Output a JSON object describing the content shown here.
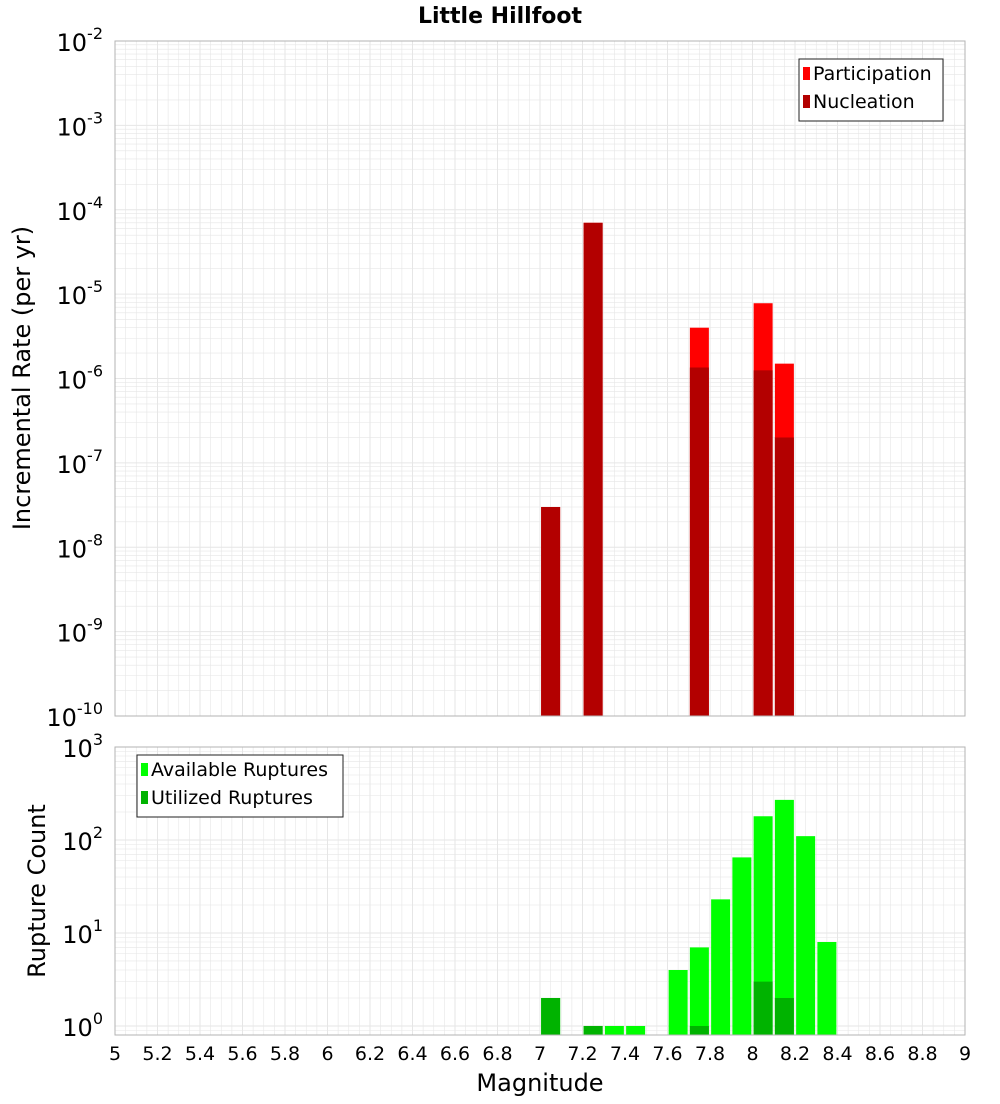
{
  "title": "Little Hillfoot",
  "xlabel": "Magnitude",
  "x_ticks": [
    "5",
    "5.2",
    "5.4",
    "5.6",
    "5.8",
    "6",
    "6.2",
    "6.4",
    "6.6",
    "6.8",
    "7",
    "7.2",
    "7.4",
    "7.6",
    "7.8",
    "8",
    "8.2",
    "8.4",
    "8.6",
    "8.8",
    "9"
  ],
  "colors": {
    "participation": "#ff0000",
    "nucleation": "#b30000",
    "available": "#00ff00",
    "utilized": "#00b300",
    "grid": "#e6e6e6",
    "frame": "#b3b3b3"
  },
  "chart_data": [
    {
      "type": "bar",
      "ylabel": "Incremental Rate (per yr)",
      "yscale": "log",
      "ylim": [
        1e-10,
        0.01
      ],
      "xlim": [
        5,
        9
      ],
      "y_ticks": [
        {
          "value": 0.01,
          "base": "10",
          "exp": "-2"
        },
        {
          "value": 0.001,
          "base": "10",
          "exp": "-3"
        },
        {
          "value": 0.0001,
          "base": "10",
          "exp": "-4"
        },
        {
          "value": 1e-05,
          "base": "10",
          "exp": "-5"
        },
        {
          "value": 1e-06,
          "base": "10",
          "exp": "-6"
        },
        {
          "value": 1e-07,
          "base": "10",
          "exp": "-7"
        },
        {
          "value": 1e-08,
          "base": "10",
          "exp": "-8"
        },
        {
          "value": 1e-09,
          "base": "10",
          "exp": "-9"
        },
        {
          "value": 1e-10,
          "base": "10",
          "exp": "-10"
        }
      ],
      "legend_position": "top-right",
      "series": [
        {
          "name": "Participation",
          "color_key": "participation",
          "x": [
            7.05,
            7.25,
            7.75,
            8.05,
            8.15
          ],
          "values": [
            3e-08,
            7e-05,
            4e-06,
            7.8e-06,
            1.5e-06
          ]
        },
        {
          "name": "Nucleation",
          "color_key": "nucleation",
          "x": [
            7.05,
            7.25,
            7.75,
            8.05,
            8.15
          ],
          "values": [
            3e-08,
            7e-05,
            1.35e-06,
            1.25e-06,
            2e-07
          ]
        }
      ]
    },
    {
      "type": "bar",
      "ylabel": "Rupture Count",
      "yscale": "log",
      "ylim": [
        0.8,
        1000
      ],
      "xlim": [
        5,
        9
      ],
      "y_ticks": [
        {
          "value": 1000,
          "base": "10",
          "exp": "3"
        },
        {
          "value": 100,
          "base": "10",
          "exp": "2"
        },
        {
          "value": 10,
          "base": "10",
          "exp": "1"
        },
        {
          "value": 1,
          "base": "10",
          "exp": "0"
        }
      ],
      "legend_position": "top-left",
      "series": [
        {
          "name": "Available Ruptures",
          "color_key": "available",
          "x": [
            7.05,
            7.25,
            7.35,
            7.45,
            7.65,
            7.75,
            7.85,
            7.95,
            8.05,
            8.15,
            8.25,
            8.35
          ],
          "values": [
            2,
            1,
            1,
            1,
            4,
            7,
            23,
            65,
            180,
            270,
            110,
            8
          ]
        },
        {
          "name": "Utilized Ruptures",
          "color_key": "utilized",
          "x": [
            7.05,
            7.25,
            7.75,
            8.05,
            8.15
          ],
          "values": [
            2,
            1,
            1,
            3,
            2
          ]
        }
      ]
    }
  ]
}
